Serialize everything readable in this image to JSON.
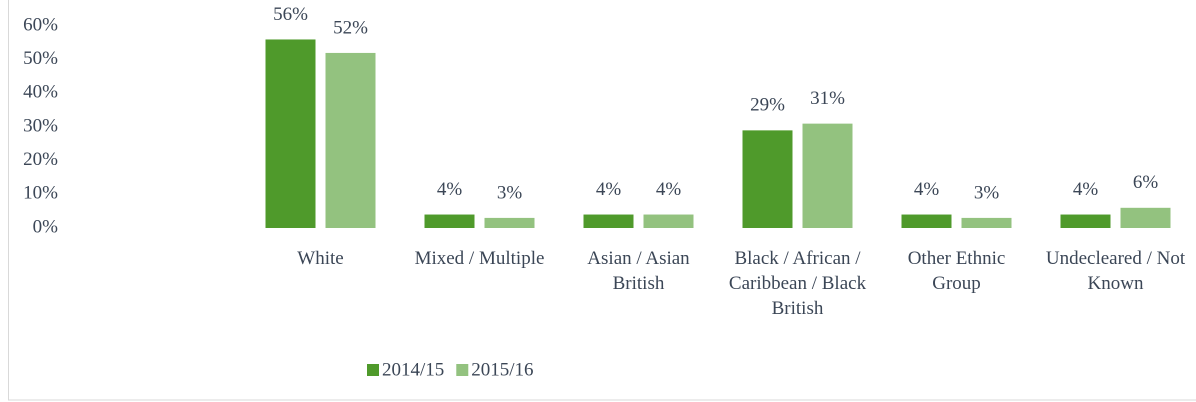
{
  "chart_data": {
    "type": "bar",
    "categories": [
      null,
      "White",
      "Mixed / Multiple",
      "Asian / Asian British",
      "Black / African / Caribbean / Black British",
      "Other Ethnic Group",
      "Undecleared / Not Known"
    ],
    "series": [
      {
        "name": "2014/15",
        "color": "#4f9a2b",
        "values": [
          null,
          56,
          4,
          4,
          29,
          4,
          4
        ],
        "value_labels": [
          null,
          "56%",
          "4%",
          "4%",
          "29%",
          "4%",
          "4%"
        ]
      },
      {
        "name": "2015/16",
        "color": "#93c27f",
        "values": [
          null,
          52,
          3,
          4,
          31,
          3,
          6
        ],
        "value_labels": [
          null,
          "52%",
          "3%",
          "4%",
          "31%",
          "3%",
          "6%"
        ]
      }
    ],
    "ylim": [
      0,
      60
    ],
    "yticks": [
      {
        "value": 0,
        "label": "0%"
      },
      {
        "value": 10,
        "label": "10%"
      },
      {
        "value": 20,
        "label": "20%"
      },
      {
        "value": 30,
        "label": "30%"
      },
      {
        "value": 40,
        "label": "40%"
      },
      {
        "value": 50,
        "label": "50%"
      },
      {
        "value": 60,
        "label": "60%"
      }
    ],
    "grid": false,
    "legend": "bottom"
  }
}
